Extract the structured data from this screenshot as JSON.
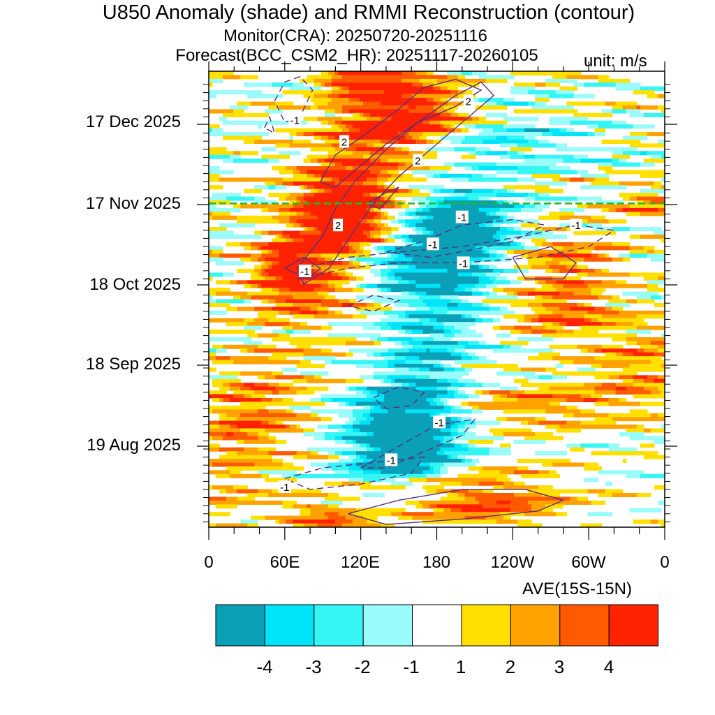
{
  "chart_data": {
    "type": "heatmap",
    "title": "U850 Anomaly (shade) and RMMI Reconstruction (contour)",
    "subtitle_monitor": "Monitor(CRA): 20250720-20251116",
    "subtitle_forecast": "Forecast(BCC_CSM2_HR): 20251117-20260105",
    "unit": "unit: m/s",
    "xlabel": "AVE(15S-15N)",
    "x_ticks": [
      "0",
      "60E",
      "120E",
      "180",
      "120W",
      "60W",
      "0"
    ],
    "x_range": [
      0,
      360
    ],
    "y_ticks": [
      "17 Dec 2025",
      "17 Nov 2025",
      "18 Oct 2025",
      "18 Sep 2025",
      "19 Aug 2025"
    ],
    "y_range_days_since_20250720": [
      0,
      169
    ],
    "forecast_start_day": 120,
    "colorbar": {
      "levels": [
        "-4",
        "-3",
        "-2",
        "-1",
        "1",
        "2",
        "3",
        "4"
      ],
      "colors": [
        "#0aa0b8",
        "#00e4fa",
        "#35f6f4",
        "#9afcfa",
        "#ffffff",
        "#ffe000",
        "#ffa200",
        "#ff5a00",
        "#ff2200"
      ]
    },
    "contour_labels": [
      {
        "text": "-1",
        "lon": 68,
        "day": 151
      },
      {
        "text": "2",
        "lon": 107,
        "day": 143
      },
      {
        "text": "2",
        "lon": 205,
        "day": 158
      },
      {
        "text": "2",
        "lon": 165,
        "day": 136
      },
      {
        "text": "-1",
        "lon": 200,
        "day": 115
      },
      {
        "text": "2",
        "lon": 102,
        "day": 112
      },
      {
        "text": "-1",
        "lon": 290,
        "day": 112
      },
      {
        "text": "-1",
        "lon": 177,
        "day": 105
      },
      {
        "text": "-1",
        "lon": 201,
        "day": 98
      },
      {
        "text": "-1",
        "lon": 76,
        "day": 95
      },
      {
        "text": "-1",
        "lon": 182,
        "day": 39
      },
      {
        "text": "-1",
        "lon": 144,
        "day": 25
      },
      {
        "text": "-1",
        "lon": 60,
        "day": 15
      }
    ]
  }
}
